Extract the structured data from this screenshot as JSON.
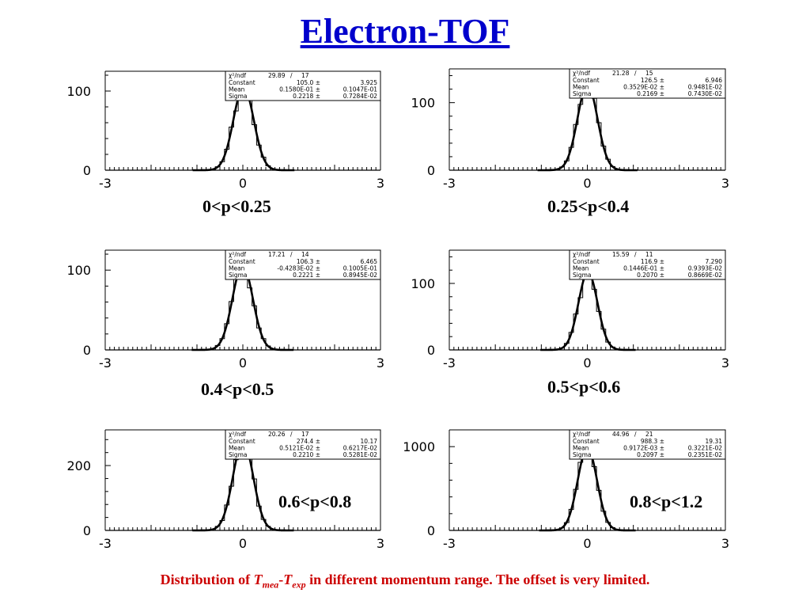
{
  "title": "Electron-TOF",
  "caption": {
    "prefix": "Distribution of ",
    "t1": "T",
    "sub1": "mea",
    "dash": "-",
    "t2": "T",
    "sub2": "exp",
    "suffix": " in different momentum range. The offset is very limited."
  },
  "chart_data": [
    {
      "type": "histogram",
      "label": "0<p<0.25",
      "xlim": [
        -3,
        3
      ],
      "xticks": [
        -3,
        0,
        3
      ],
      "ylim": [
        0,
        125
      ],
      "yticks": [
        0,
        100
      ],
      "fit": "gaussian",
      "stats": {
        "header": [
          "χ²/ndf",
          "29.89",
          "/",
          "17"
        ],
        "rows": [
          [
            "Constant",
            "105.0 ±",
            "3.925"
          ],
          [
            "Mean",
            "0.1580E-01 ±",
            "0.1047E-01"
          ],
          [
            "Sigma",
            "0.2218 ±",
            "0.7284E-02"
          ]
        ]
      },
      "constant": 105.0,
      "mean": 0.0158,
      "sigma": 0.2218
    },
    {
      "type": "histogram",
      "label": "0.25<p<0.4",
      "xlim": [
        -3,
        3
      ],
      "xticks": [
        -3,
        0,
        3
      ],
      "ylim": [
        0,
        150
      ],
      "yticks": [
        0,
        100
      ],
      "fit": "gaussian",
      "stats": {
        "header": [
          "χ²/ndf",
          "21.28",
          "/",
          "15"
        ],
        "rows": [
          [
            "Constant",
            "126.5 ±",
            "6.946"
          ],
          [
            "Mean",
            "0.3529E-02 ±",
            "0.9481E-02"
          ],
          [
            "Sigma",
            "0.2169 ±",
            "0.7430E-02"
          ]
        ]
      },
      "constant": 126.5,
      "mean": 0.0035,
      "sigma": 0.2169
    },
    {
      "type": "histogram",
      "label": "0.4<p<0.5",
      "xlim": [
        -3,
        3
      ],
      "xticks": [
        -3,
        0,
        3
      ],
      "ylim": [
        0,
        125
      ],
      "yticks": [
        0,
        100
      ],
      "fit": "gaussian",
      "stats": {
        "header": [
          "χ²/ndf",
          "17.21",
          "/",
          "14"
        ],
        "rows": [
          [
            "Constant",
            "106.3 ±",
            "6.465"
          ],
          [
            "Mean",
            "-0.4283E-02 ±",
            "0.1005E-01"
          ],
          [
            "Sigma",
            "0.2221 ±",
            "0.8945E-02"
          ]
        ]
      },
      "constant": 106.3,
      "mean": -0.0043,
      "sigma": 0.2221
    },
    {
      "type": "histogram",
      "label": "0.5<p<0.6",
      "xlim": [
        -3,
        3
      ],
      "xticks": [
        -3,
        0,
        3
      ],
      "ylim": [
        0,
        150
      ],
      "yticks": [
        0,
        100
      ],
      "fit": "gaussian",
      "stats": {
        "header": [
          "χ²/ndf",
          "15.59",
          "/",
          "11"
        ],
        "rows": [
          [
            "Constant",
            "116.9 ±",
            "7.290"
          ],
          [
            "Mean",
            "0.1446E-01 ±",
            "0.9393E-02"
          ],
          [
            "Sigma",
            "0.2070 ±",
            "0.8669E-02"
          ]
        ]
      },
      "constant": 116.9,
      "mean": 0.0145,
      "sigma": 0.207
    },
    {
      "type": "histogram",
      "label": "0.6<p<0.8",
      "xlim": [
        -3,
        3
      ],
      "xticks": [
        -3,
        0,
        3
      ],
      "ylim": [
        0,
        310
      ],
      "yticks": [
        0,
        200
      ],
      "fit": "gaussian",
      "stats": {
        "header": [
          "χ²/ndf",
          "20.26",
          "/",
          "17"
        ],
        "rows": [
          [
            "Constant",
            "274.4 ±",
            "10.17"
          ],
          [
            "Mean",
            "0.5121E-02 ±",
            "0.6217E-02"
          ],
          [
            "Sigma",
            "0.2210 ±",
            "0.5281E-02"
          ]
        ]
      },
      "constant": 274.4,
      "mean": 0.0051,
      "sigma": 0.221
    },
    {
      "type": "histogram",
      "label": "0.8<p<1.2",
      "xlim": [
        -3,
        3
      ],
      "xticks": [
        -3,
        0,
        3
      ],
      "ylim": [
        0,
        1200
      ],
      "yticks": [
        0,
        1000
      ],
      "fit": "gaussian",
      "stats": {
        "header": [
          "χ²/ndf",
          "44.96",
          "/",
          "21"
        ],
        "rows": [
          [
            "Constant",
            "988.3 ±",
            "19.31"
          ],
          [
            "Mean",
            "0.9172E-03 ±",
            "0.3221E-02"
          ],
          [
            "Sigma",
            "0.2097 ±",
            "0.2351E-02"
          ]
        ]
      },
      "constant": 988.3,
      "mean": 0.0009,
      "sigma": 0.2097
    }
  ]
}
